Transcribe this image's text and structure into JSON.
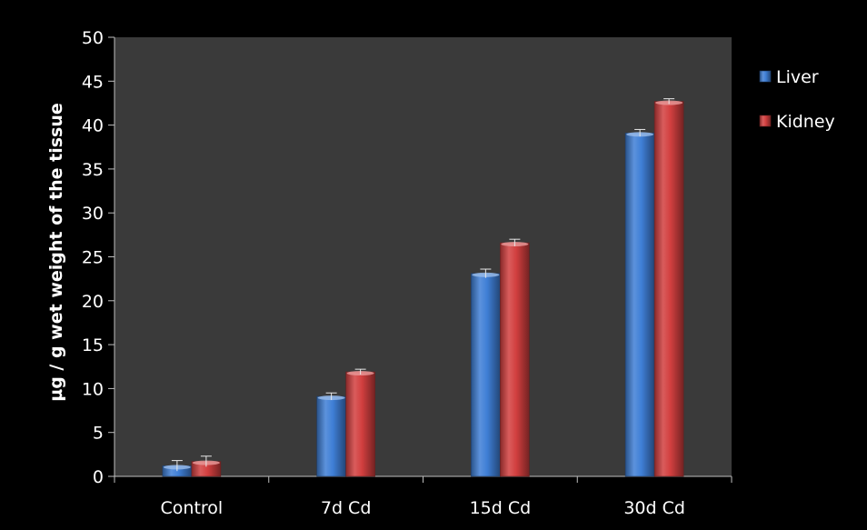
{
  "chart_data": {
    "type": "bar",
    "title": "",
    "xlabel": "",
    "ylabel": "µg / g wet weight of the tissue",
    "categories": [
      "Control",
      "7d Cd",
      "15d Cd",
      "30d Cd"
    ],
    "series": [
      {
        "name": "Liver",
        "color": "#3f7fd6",
        "values": [
          1.2,
          9.1,
          23.1,
          39.1
        ],
        "errors": [
          0.6,
          0.4,
          0.5,
          0.4
        ]
      },
      {
        "name": "Kidney",
        "color": "#d23f3f",
        "values": [
          1.7,
          11.9,
          26.6,
          42.7
        ],
        "errors": [
          0.6,
          0.3,
          0.4,
          0.3
        ]
      }
    ],
    "ylim": [
      0,
      50
    ],
    "yticks": [
      0,
      5,
      10,
      15,
      20,
      25,
      30,
      35,
      40,
      45,
      50
    ],
    "grid": false,
    "legend_position": "right",
    "plot_background": "#3a3a3a",
    "page_background": "#000000"
  }
}
